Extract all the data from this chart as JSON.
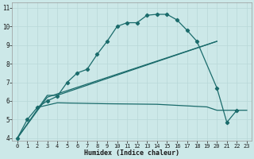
{
  "xlabel": "Humidex (Indice chaleur)",
  "bg_color": "#cce8e8",
  "grid_color": "#b8d8d8",
  "line_color": "#1a6b6b",
  "xlim": [
    -0.5,
    23.5
  ],
  "ylim": [
    3.85,
    11.3
  ],
  "xticks": [
    0,
    1,
    2,
    3,
    4,
    5,
    6,
    7,
    8,
    9,
    10,
    11,
    12,
    13,
    14,
    15,
    16,
    17,
    18,
    19,
    20,
    21,
    22,
    23
  ],
  "yticks": [
    4,
    5,
    6,
    7,
    8,
    9,
    10,
    11
  ],
  "curve_x": [
    0,
    1,
    2,
    3,
    4,
    5,
    6,
    7,
    8,
    9,
    10,
    11,
    12,
    13,
    14,
    15,
    16,
    17,
    18,
    20,
    21,
    22,
    23
  ],
  "curve_y": [
    4.0,
    5.0,
    5.65,
    6.0,
    6.25,
    7.0,
    7.5,
    7.7,
    8.5,
    9.2,
    10.0,
    10.2,
    10.2,
    10.6,
    10.65,
    10.65,
    10.35,
    9.8,
    9.2,
    6.7,
    4.85,
    5.5,
    null
  ],
  "line1_x": [
    0,
    3,
    4,
    20
  ],
  "line1_y": [
    4.0,
    6.3,
    6.3,
    9.2
  ],
  "line2_x": [
    0,
    3,
    20
  ],
  "line2_y": [
    4.0,
    6.2,
    9.2
  ],
  "flat_x": [
    2,
    4,
    9,
    14,
    19,
    20,
    23
  ],
  "flat_y": [
    5.65,
    5.9,
    5.85,
    5.82,
    5.68,
    5.5,
    5.5
  ]
}
